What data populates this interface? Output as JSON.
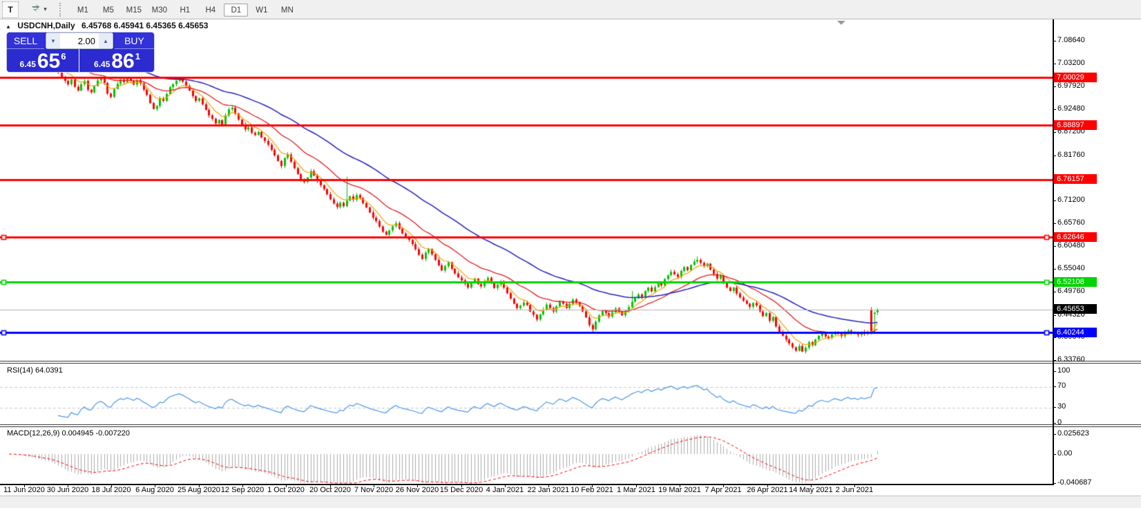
{
  "toolbar": {
    "text_tool": "T",
    "arrows_dropdown": "▾",
    "timeframes": [
      "M1",
      "M5",
      "M15",
      "M30",
      "H1",
      "H4",
      "D1",
      "W1",
      "MN"
    ],
    "selected_timeframe": "D1"
  },
  "chart_header": {
    "collapse_glyph": "▲",
    "symbol_period": "USDCNH,Daily",
    "ohlc": "6.45768 6.45941 6.45365 6.45653"
  },
  "trade_panel": {
    "sell_label": "SELL",
    "buy_label": "BUY",
    "volume": "2.00",
    "spinner_down": "▼",
    "spinner_up": "▲",
    "sell_price_main": "6.45",
    "sell_price_big": "65",
    "sell_price_sup": "6",
    "buy_price_main": "6.45",
    "buy_price_big": "86",
    "buy_price_sup": "1"
  },
  "price_scale": {
    "ticks": [
      "7.08640",
      "7.03200",
      "6.97920",
      "6.92480",
      "6.87200",
      "6.81760",
      "6.71200",
      "6.65760",
      "6.60480",
      "6.55040",
      "6.49760",
      "6.44320",
      "6.39040",
      "6.33760"
    ],
    "line_labels": [
      {
        "text": "7.00029",
        "price": 7.00029,
        "color": "#ff0000"
      },
      {
        "text": "6.88897",
        "price": 6.88897,
        "color": "#ff0000"
      },
      {
        "text": "6.76157",
        "price": 6.76157,
        "color": "#ff0000"
      },
      {
        "text": "6.62646",
        "price": 6.62646,
        "color": "#ff0000"
      },
      {
        "text": "6.52108",
        "price": 6.52108,
        "color": "#00d400"
      },
      {
        "text": "6.45653",
        "price": 6.45653,
        "color": "#000000"
      },
      {
        "text": "6.40244",
        "price": 6.40244,
        "color": "#0000ff"
      }
    ]
  },
  "rsi_panel": {
    "label": "RSI(14)",
    "value": "64.0391",
    "scale_ticks": [
      100,
      70,
      30,
      0
    ],
    "level_lines": [
      70,
      30
    ]
  },
  "macd_panel": {
    "label": "MACD(12,26,9)",
    "values": "0.004945 -0.007220",
    "scale_ticks": [
      "0.025623",
      "0.00",
      "-0.040687"
    ]
  },
  "date_axis": [
    "11 Jun 2020",
    "30 Jun 2020",
    "18 Jul 2020",
    "6 Aug 2020",
    "25 Aug 2020",
    "12 Sep 2020",
    "1 Oct 2020",
    "20 Oct 2020",
    "7 Nov 2020",
    "26 Nov 2020",
    "15 Dec 2020",
    "4 Jan 2021",
    "22 Jan 2021",
    "10 Feb 2021",
    "1 Mar 2021",
    "19 Mar 2021",
    "7 Apr 2021",
    "26 Apr 2021",
    "14 May 2021",
    "2 Jun 2021"
  ],
  "chart_data": {
    "type": "candlestick",
    "title": "USDCNH Daily with RSI(14) and MACD(12,26,9)",
    "symbol": "USDCNH",
    "period": "Daily",
    "current_price": 6.45653,
    "hlines": [
      {
        "price": 7.00029,
        "color": "#ff0000",
        "width": 3,
        "handles": false
      },
      {
        "price": 6.88897,
        "color": "#ff0000",
        "width": 3,
        "handles": false
      },
      {
        "price": 6.76157,
        "color": "#ff0000",
        "width": 3,
        "handles": false
      },
      {
        "price": 6.62646,
        "color": "#ff0000",
        "width": 3,
        "handles": true
      },
      {
        "price": 6.52108,
        "color": "#00d400",
        "width": 3,
        "handles": true
      },
      {
        "price": 6.40244,
        "color": "#0000ff",
        "width": 3,
        "handles": true
      },
      {
        "price": 6.45653,
        "color": "#b4b4b4",
        "width": 1,
        "handles": false
      }
    ],
    "ma_periods": {
      "fast": 7,
      "mid": 21,
      "slow": 50
    },
    "rsi_period": 14,
    "macd_params": [
      12,
      26,
      9
    ],
    "first_open": 7.088,
    "closes": [
      7.085,
      7.081,
      7.076,
      7.079,
      7.071,
      7.066,
      7.07,
      7.062,
      7.055,
      7.06,
      7.051,
      7.045,
      7.048,
      7.036,
      7.024,
      7.012,
      7.001,
      6.993,
      6.985,
      6.996,
      6.979,
      6.97,
      6.985,
      6.993,
      6.972,
      6.966,
      6.981,
      6.994,
      6.999,
      6.988,
      6.963,
      6.955,
      6.974,
      6.986,
      6.996,
      6.99,
      6.999,
      6.993,
      6.984,
      6.995,
      6.987,
      6.972,
      6.96,
      6.941,
      6.927,
      6.934,
      6.951,
      6.946,
      6.962,
      6.978,
      6.985,
      6.993,
      6.997,
      6.991,
      6.981,
      6.97,
      6.957,
      6.946,
      6.952,
      6.938,
      6.925,
      6.912,
      6.904,
      6.893,
      6.901,
      6.888,
      6.912,
      6.926,
      6.93,
      6.916,
      6.902,
      6.89,
      6.879,
      6.884,
      6.871,
      6.866,
      6.873,
      6.86,
      6.852,
      6.843,
      6.831,
      6.818,
      6.805,
      6.793,
      6.812,
      6.82,
      6.803,
      6.788,
      6.774,
      6.762,
      6.756,
      6.766,
      6.781,
      6.771,
      6.759,
      6.748,
      6.739,
      6.727,
      6.715,
      6.705,
      6.697,
      6.707,
      6.699,
      6.712,
      6.722,
      6.714,
      6.725,
      6.718,
      6.706,
      6.696,
      6.684,
      6.672,
      6.664,
      6.651,
      6.639,
      6.632,
      6.642,
      6.652,
      6.659,
      6.646,
      6.635,
      6.627,
      6.62,
      6.61,
      6.598,
      6.585,
      6.575,
      6.59,
      6.598,
      6.586,
      6.573,
      6.56,
      6.548,
      6.558,
      6.567,
      6.552,
      6.541,
      6.532,
      6.525,
      6.517,
      6.508,
      6.52,
      6.529,
      6.516,
      6.511,
      6.523,
      6.531,
      6.519,
      6.507,
      6.515,
      6.521,
      6.508,
      6.495,
      6.482,
      6.47,
      6.46,
      6.466,
      6.473,
      6.467,
      6.452,
      6.444,
      6.433,
      6.445,
      6.456,
      6.468,
      6.46,
      6.452,
      6.464,
      6.476,
      6.47,
      6.46,
      6.47,
      6.48,
      6.473,
      6.465,
      6.452,
      6.438,
      6.42,
      6.41,
      6.428,
      6.443,
      6.453,
      6.448,
      6.44,
      6.45,
      6.459,
      6.451,
      6.443,
      6.453,
      6.462,
      6.475,
      6.483,
      6.492,
      6.486,
      6.5,
      6.508,
      6.499,
      6.509,
      6.519,
      6.513,
      6.528,
      6.537,
      6.545,
      6.539,
      6.533,
      6.547,
      6.556,
      6.549,
      6.561,
      6.569,
      6.573,
      6.566,
      6.558,
      6.564,
      6.55,
      6.54,
      6.529,
      6.536,
      6.519,
      6.508,
      6.5,
      6.508,
      6.494,
      6.485,
      6.477,
      6.47,
      6.463,
      6.472,
      6.466,
      6.452,
      6.441,
      6.448,
      6.43,
      6.439,
      6.417,
      6.404,
      6.395,
      6.386,
      6.377,
      6.368,
      6.36,
      6.371,
      6.358,
      6.367,
      6.38,
      6.373,
      6.386,
      6.395,
      6.4,
      6.393,
      6.39,
      6.398,
      6.404,
      6.399,
      6.394,
      6.402,
      6.407,
      6.4,
      6.403,
      6.397,
      6.404,
      6.399,
      6.403,
      6.405,
      6.449,
      6.4565
    ],
    "overrides": {
      "103": {
        "h": 6.768
      },
      "178": {
        "l": 6.402
      },
      "190": {
        "h": 6.5
      },
      "210": {
        "h": 6.581
      },
      "263": {
        "o": 6.455,
        "h": 6.462,
        "l": 6.398
      },
      "264": {
        "o": 6.446
      },
      "265": {
        "o": 6.45
      }
    }
  },
  "colors": {
    "up": "#00c400",
    "down": "#ff0000",
    "ma_fast": "#f0a400",
    "ma_mid": "#e02020",
    "ma_slow": "#2020be",
    "rsi_line": "#4a96e8",
    "rsi_levels": "#c8c8c8",
    "macd_hist": "#ababab",
    "macd_signal": "#ff0000",
    "current_line": "#b4b4b4"
  }
}
